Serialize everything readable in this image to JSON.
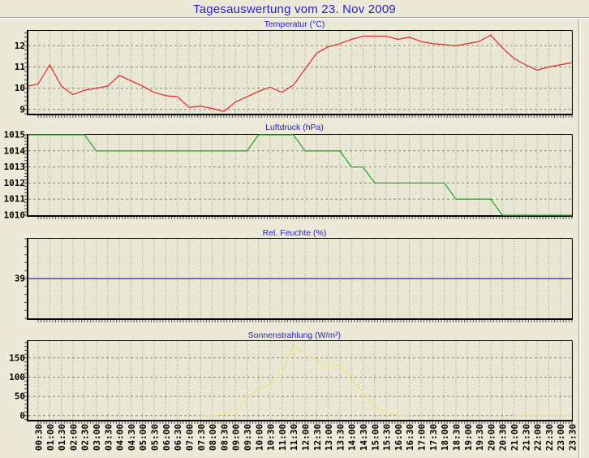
{
  "page": {
    "title": "Tagesauswertung vom 23. Nov 2009",
    "background": "#ece9d8",
    "title_color": "#2323cb"
  },
  "chart_data": {
    "type": "line",
    "layout": "4 stacked panels, shared time axis, grid on",
    "categories": [
      "00:30",
      "01:00",
      "01:30",
      "02:00",
      "02:30",
      "03:00",
      "03:30",
      "04:00",
      "04:30",
      "05:00",
      "05:30",
      "06:00",
      "06:30",
      "07:00",
      "07:30",
      "08:00",
      "08:30",
      "09:00",
      "09:30",
      "10:00",
      "10:30",
      "11:00",
      "11:30",
      "12:00",
      "12:30",
      "13:00",
      "13:30",
      "14:00",
      "14:30",
      "15:00",
      "15:30",
      "16:00",
      "16:30",
      "17:00",
      "17:30",
      "18:00",
      "18:30",
      "19:00",
      "19:30",
      "20:00",
      "20:30",
      "21:00",
      "21:30",
      "22:00",
      "22:30",
      "23:00",
      "23:30"
    ],
    "panels": [
      {
        "name": "temperature",
        "title": "Temperatur (°C)",
        "unit": "°C",
        "color": "#dd3333",
        "ylim": [
          8.8,
          12.7
        ],
        "yticks": [
          9,
          10,
          11,
          12
        ],
        "ytick_labels": [
          "9",
          "10",
          "11",
          "12"
        ],
        "lead": 10.1,
        "values": [
          10.2,
          11.1,
          10.1,
          9.7,
          9.9,
          10.0,
          10.1,
          10.6,
          10.35,
          10.1,
          9.8,
          9.65,
          9.6,
          9.1,
          9.15,
          9.05,
          8.9,
          9.35,
          9.6,
          9.85,
          10.05,
          9.8,
          10.15,
          10.9,
          11.65,
          11.95,
          12.1,
          12.3,
          12.45,
          12.45,
          12.45,
          12.3,
          12.4,
          12.2,
          12.1,
          12.05,
          12.0,
          12.1,
          12.2,
          12.5,
          11.9,
          11.4,
          11.1,
          10.85,
          11.0,
          11.1,
          11.2
        ]
      },
      {
        "name": "pressure",
        "title": "Luftdruck (hPa)",
        "unit": "hPa",
        "color": "#2ba82b",
        "ylim": [
          1010,
          1015
        ],
        "yticks": [
          1010,
          1011,
          1012,
          1013,
          1014,
          1015
        ],
        "ytick_labels": [
          "1010",
          "1011",
          "1012",
          "1013",
          "1014",
          "1015"
        ],
        "lead": 1015,
        "values": [
          1015,
          1015,
          1015,
          1015,
          1015,
          1014,
          1014,
          1014,
          1014,
          1014,
          1014,
          1014,
          1014,
          1014,
          1014,
          1014,
          1014,
          1014,
          1014,
          1015,
          1015,
          1015,
          1015,
          1014,
          1014,
          1014,
          1014,
          1013,
          1013,
          1012,
          1012,
          1012,
          1012,
          1012,
          1012,
          1012,
          1011,
          1011,
          1011,
          1011,
          1010,
          1010,
          1010,
          1010,
          1010,
          1010,
          1010
        ]
      },
      {
        "name": "humidity",
        "title": "Rel. Feuchte (%)",
        "unit": "%",
        "color": "#2727a8",
        "ylim": [
          34,
          44
        ],
        "yticks": [
          39
        ],
        "ytick_labels": [
          "39"
        ],
        "lead": 39,
        "values": [
          39,
          39,
          39,
          39,
          39,
          39,
          39,
          39,
          39,
          39,
          39,
          39,
          39,
          39,
          39,
          39,
          39,
          39,
          39,
          39,
          39,
          39,
          39,
          39,
          39,
          39,
          39,
          39,
          39,
          39,
          39,
          39,
          39,
          39,
          39,
          39,
          39,
          39,
          39,
          39,
          39,
          39,
          39,
          39,
          39,
          39,
          39
        ]
      },
      {
        "name": "solar",
        "title": "Sonnenstrahlung (W/m²)",
        "unit": "W/m²",
        "color": "#e6e684",
        "ylim": [
          -11,
          194
        ],
        "yticks": [
          0,
          50,
          100,
          150
        ],
        "ytick_labels": [
          "0",
          "50",
          "100",
          "150"
        ],
        "lead": null,
        "values": [
          null,
          null,
          null,
          null,
          null,
          null,
          null,
          null,
          null,
          null,
          null,
          null,
          null,
          null,
          0,
          0,
          3,
          8,
          45,
          70,
          80,
          110,
          185,
          160,
          145,
          123,
          132,
          95,
          60,
          25,
          8,
          1,
          0,
          null,
          null,
          null,
          null,
          null,
          null,
          null,
          null,
          1,
          1,
          1,
          1,
          1,
          0
        ]
      }
    ]
  }
}
